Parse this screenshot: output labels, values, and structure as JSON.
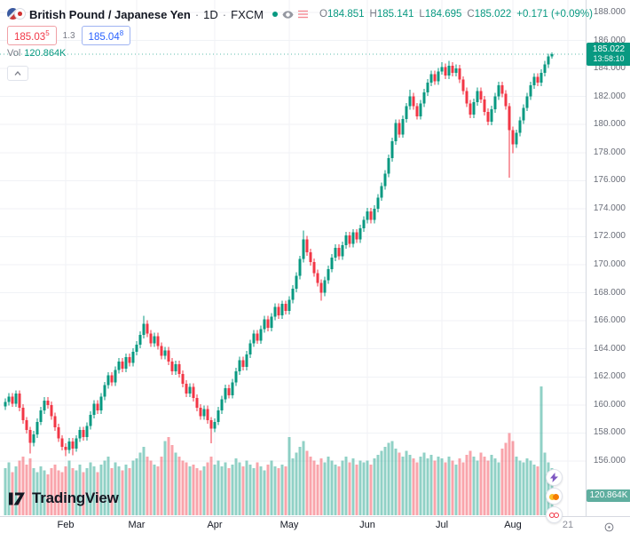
{
  "header": {
    "symbol_title": "British Pound / Japanese Yen",
    "separator": "·",
    "interval": "1D",
    "exchange": "FXCM",
    "ohlc": {
      "o_label": "O",
      "o_value": "184.851",
      "h_label": "H",
      "h_value": "185.141",
      "l_label": "L",
      "l_value": "184.695",
      "c_label": "C",
      "c_value": "185.022",
      "change": "+0.171 (+0.09%)"
    },
    "trade_panel": {
      "sell_main": "185.03",
      "sell_sup": "5",
      "spread": "1.3",
      "buy_main": "185.04",
      "buy_sup": "8"
    },
    "volume_row": {
      "label": "Vol",
      "value": "120.864K"
    }
  },
  "price_scale": {
    "last_price_badge": {
      "price": "185.022",
      "countdown": "13:58:10"
    },
    "volume_badge": "120.864K"
  },
  "watermark_logo": {
    "text": "TradingView"
  },
  "chart_data": {
    "type": "candlestick",
    "title": "British Pound / Japanese Yen, 1D, FXCM",
    "legend_position": "top-left",
    "grid": true,
    "price_axis": {
      "min": 156,
      "max": 188,
      "step": 2,
      "ticks": [
        {
          "text": "188.000",
          "value": 188
        },
        {
          "text": "186.000",
          "value": 186
        },
        {
          "text": "184.000",
          "value": 184
        },
        {
          "text": "182.000",
          "value": 182
        },
        {
          "text": "180.000",
          "value": 180
        },
        {
          "text": "178.000",
          "value": 178
        },
        {
          "text": "176.000",
          "value": 176
        },
        {
          "text": "174.000",
          "value": 174
        },
        {
          "text": "172.000",
          "value": 172
        },
        {
          "text": "170.000",
          "value": 170
        },
        {
          "text": "168.000",
          "value": 168
        },
        {
          "text": "166.000",
          "value": 166
        },
        {
          "text": "164.000",
          "value": 164
        },
        {
          "text": "162.000",
          "value": 162
        },
        {
          "text": "160.000",
          "value": 160
        },
        {
          "text": "158.000",
          "value": 158
        },
        {
          "text": "156.000",
          "value": 156
        }
      ]
    },
    "time_axis": [
      {
        "label": "Feb",
        "candle_index": 17
      },
      {
        "label": "Mar",
        "candle_index": 37
      },
      {
        "label": "Apr",
        "candle_index": 59
      },
      {
        "label": "May",
        "candle_index": 80
      },
      {
        "label": "Jun",
        "candle_index": 102
      },
      {
        "label": "Jul",
        "candle_index": 123
      },
      {
        "label": "Aug",
        "candle_index": 143
      },
      {
        "label": "21",
        "candle_index": 158.5,
        "muted": true
      }
    ],
    "colors": {
      "up": "#089981",
      "down": "#f23645",
      "vol_up": "rgba(8,153,129,0.45)",
      "vol_down": "rgba(242,54,69,0.45)",
      "grid": "#f0f2f6",
      "last_line": "#089981"
    },
    "candle_format": [
      "open",
      "high",
      "low",
      "close",
      "volume_k"
    ],
    "candles": [
      [
        159.9,
        160.45,
        159.65,
        160.2,
        120
      ],
      [
        160.2,
        160.85,
        159.95,
        160.6,
        135
      ],
      [
        160.6,
        160.85,
        159.85,
        160.1,
        110
      ],
      [
        160.1,
        161.05,
        159.85,
        160.8,
        125
      ],
      [
        160.8,
        161.05,
        159.55,
        159.8,
        140
      ],
      [
        159.8,
        160.05,
        158.65,
        158.9,
        150
      ],
      [
        158.9,
        159.15,
        157.95,
        158.2,
        130
      ],
      [
        158.2,
        158.45,
        156.55,
        157.3,
        145
      ],
      [
        157.3,
        158.15,
        157.05,
        157.9,
        120
      ],
      [
        157.9,
        159.05,
        157.65,
        158.8,
        110
      ],
      [
        158.8,
        159.85,
        158.55,
        159.6,
        125
      ],
      [
        159.6,
        160.55,
        159.35,
        160.3,
        115
      ],
      [
        160.3,
        160.55,
        159.75,
        160.0,
        105
      ],
      [
        160.0,
        160.25,
        158.95,
        159.2,
        120
      ],
      [
        159.2,
        159.45,
        158.15,
        158.4,
        130
      ],
      [
        158.4,
        158.65,
        157.35,
        157.6,
        115
      ],
      [
        157.6,
        157.85,
        156.75,
        157.0,
        110
      ],
      [
        157.0,
        157.25,
        156.35,
        156.8,
        125
      ],
      [
        156.8,
        157.65,
        156.55,
        157.4,
        140
      ],
      [
        157.4,
        157.65,
        156.4,
        156.9,
        120
      ],
      [
        156.9,
        157.85,
        156.65,
        157.6,
        115
      ],
      [
        157.6,
        158.45,
        157.35,
        158.2,
        130
      ],
      [
        158.2,
        158.45,
        157.45,
        157.7,
        110
      ],
      [
        157.7,
        158.75,
        157.45,
        158.5,
        120
      ],
      [
        158.5,
        159.55,
        158.25,
        159.3,
        135
      ],
      [
        159.3,
        160.35,
        159.05,
        160.1,
        125
      ],
      [
        160.1,
        160.35,
        159.35,
        159.6,
        110
      ],
      [
        159.6,
        160.85,
        159.35,
        160.6,
        130
      ],
      [
        160.6,
        161.65,
        160.35,
        161.4,
        140
      ],
      [
        161.4,
        162.35,
        161.15,
        162.1,
        150
      ],
      [
        162.1,
        162.35,
        161.35,
        161.6,
        120
      ],
      [
        161.6,
        162.75,
        161.35,
        162.5,
        135
      ],
      [
        162.5,
        163.35,
        162.25,
        163.1,
        125
      ],
      [
        163.1,
        163.35,
        162.35,
        162.6,
        115
      ],
      [
        162.6,
        163.65,
        162.35,
        163.4,
        130
      ],
      [
        163.4,
        163.65,
        162.75,
        163.0,
        120
      ],
      [
        163.0,
        164.05,
        162.75,
        163.8,
        140
      ],
      [
        163.8,
        164.55,
        163.55,
        164.3,
        145
      ],
      [
        164.3,
        165.25,
        164.05,
        165.0,
        160
      ],
      [
        165.0,
        166.35,
        164.75,
        165.8,
        175
      ],
      [
        165.8,
        166.05,
        164.85,
        165.1,
        150
      ],
      [
        165.1,
        165.35,
        164.15,
        164.4,
        140
      ],
      [
        164.4,
        165.15,
        164.15,
        164.9,
        130
      ],
      [
        164.9,
        165.15,
        163.95,
        164.2,
        125
      ],
      [
        164.2,
        164.45,
        163.25,
        163.5,
        150
      ],
      [
        163.5,
        164.15,
        163.25,
        163.9,
        190
      ],
      [
        163.9,
        164.15,
        162.85,
        163.1,
        200
      ],
      [
        163.1,
        163.35,
        162.15,
        162.4,
        180
      ],
      [
        162.4,
        163.15,
        162.15,
        162.9,
        160
      ],
      [
        162.9,
        163.15,
        161.95,
        162.2,
        150
      ],
      [
        162.2,
        162.45,
        161.25,
        161.5,
        140
      ],
      [
        161.5,
        161.75,
        160.55,
        160.8,
        135
      ],
      [
        160.8,
        161.55,
        160.55,
        161.3,
        125
      ],
      [
        161.3,
        161.55,
        160.25,
        160.5,
        130
      ],
      [
        160.5,
        160.75,
        159.55,
        159.8,
        120
      ],
      [
        159.8,
        160.05,
        158.95,
        159.2,
        115
      ],
      [
        159.2,
        159.95,
        158.95,
        159.7,
        125
      ],
      [
        159.7,
        159.95,
        158.65,
        158.9,
        135
      ],
      [
        158.9,
        159.15,
        157.25,
        158.3,
        150
      ],
      [
        158.3,
        159.05,
        158.05,
        158.8,
        130
      ],
      [
        158.8,
        159.85,
        158.55,
        159.6,
        140
      ],
      [
        159.6,
        160.65,
        159.35,
        160.4,
        125
      ],
      [
        160.4,
        161.45,
        160.15,
        161.2,
        135
      ],
      [
        161.2,
        161.45,
        160.45,
        160.7,
        120
      ],
      [
        160.7,
        161.85,
        160.45,
        161.6,
        130
      ],
      [
        161.6,
        162.65,
        161.35,
        162.4,
        145
      ],
      [
        162.4,
        163.45,
        162.15,
        163.2,
        135
      ],
      [
        163.2,
        163.45,
        162.45,
        162.7,
        125
      ],
      [
        162.7,
        163.85,
        162.45,
        163.6,
        140
      ],
      [
        163.6,
        164.65,
        163.35,
        164.4,
        130
      ],
      [
        164.4,
        165.35,
        164.15,
        165.1,
        120
      ],
      [
        165.1,
        165.35,
        164.35,
        164.6,
        135
      ],
      [
        164.6,
        165.65,
        164.35,
        165.4,
        125
      ],
      [
        165.4,
        166.35,
        165.15,
        166.1,
        115
      ],
      [
        166.1,
        166.35,
        165.25,
        165.5,
        130
      ],
      [
        165.5,
        166.55,
        165.25,
        166.3,
        140
      ],
      [
        166.3,
        167.25,
        166.05,
        167.0,
        125
      ],
      [
        167.0,
        167.25,
        166.15,
        166.4,
        120
      ],
      [
        166.4,
        167.45,
        166.15,
        167.2,
        130
      ],
      [
        167.2,
        167.45,
        166.45,
        166.7,
        125
      ],
      [
        166.7,
        167.75,
        166.45,
        167.5,
        200
      ],
      [
        167.5,
        168.55,
        167.25,
        168.3,
        145
      ],
      [
        168.3,
        169.45,
        168.05,
        169.2,
        160
      ],
      [
        169.2,
        170.65,
        168.95,
        170.4,
        175
      ],
      [
        170.4,
        172.45,
        170.15,
        171.8,
        190
      ],
      [
        171.8,
        172.05,
        170.65,
        170.9,
        165
      ],
      [
        170.9,
        171.15,
        169.95,
        170.2,
        150
      ],
      [
        170.2,
        170.45,
        169.15,
        169.4,
        140
      ],
      [
        169.4,
        169.65,
        168.45,
        168.7,
        130
      ],
      [
        168.7,
        168.95,
        167.45,
        168.0,
        145
      ],
      [
        168.0,
        169.15,
        167.75,
        168.9,
        135
      ],
      [
        168.9,
        169.95,
        168.65,
        169.7,
        150
      ],
      [
        169.7,
        170.75,
        169.45,
        170.5,
        140
      ],
      [
        170.5,
        171.45,
        170.25,
        171.2,
        130
      ],
      [
        171.2,
        171.45,
        170.35,
        170.6,
        125
      ],
      [
        170.6,
        171.65,
        170.35,
        171.4,
        140
      ],
      [
        171.4,
        172.35,
        171.15,
        172.1,
        150
      ],
      [
        172.1,
        172.35,
        171.25,
        171.5,
        135
      ],
      [
        171.5,
        172.55,
        171.25,
        172.3,
        145
      ],
      [
        172.3,
        172.55,
        171.55,
        171.8,
        130
      ],
      [
        171.8,
        172.85,
        171.55,
        172.6,
        140
      ],
      [
        172.6,
        173.45,
        172.35,
        173.2,
        135
      ],
      [
        173.2,
        174.05,
        172.95,
        173.8,
        140
      ],
      [
        173.8,
        174.05,
        172.95,
        173.2,
        130
      ],
      [
        173.2,
        174.25,
        172.95,
        174.0,
        145
      ],
      [
        174.0,
        175.05,
        173.75,
        174.8,
        155
      ],
      [
        174.8,
        175.85,
        174.55,
        175.6,
        165
      ],
      [
        175.6,
        176.75,
        175.35,
        176.5,
        175
      ],
      [
        176.5,
        177.85,
        176.25,
        177.6,
        185
      ],
      [
        177.6,
        179.05,
        177.35,
        178.8,
        190
      ],
      [
        178.8,
        180.35,
        178.55,
        180.1,
        170
      ],
      [
        180.1,
        180.35,
        179.05,
        179.3,
        160
      ],
      [
        179.3,
        180.65,
        179.05,
        180.4,
        150
      ],
      [
        180.4,
        181.55,
        180.15,
        181.3,
        165
      ],
      [
        181.3,
        182.5,
        181.05,
        182.0,
        155
      ],
      [
        182.0,
        182.25,
        181.05,
        181.3,
        145
      ],
      [
        181.3,
        181.55,
        180.35,
        180.6,
        135
      ],
      [
        180.6,
        181.75,
        180.35,
        181.5,
        150
      ],
      [
        181.5,
        182.55,
        181.25,
        182.3,
        160
      ],
      [
        182.3,
        183.25,
        182.05,
        183.0,
        145
      ],
      [
        183.0,
        183.85,
        182.75,
        183.6,
        155
      ],
      [
        183.6,
        183.85,
        182.85,
        183.1,
        140
      ],
      [
        183.1,
        184.05,
        182.85,
        183.8,
        150
      ],
      [
        183.8,
        184.45,
        183.55,
        184.1,
        145
      ],
      [
        184.1,
        184.35,
        183.25,
        183.5,
        135
      ],
      [
        183.5,
        184.55,
        183.25,
        184.2,
        150
      ],
      [
        184.2,
        184.45,
        183.45,
        183.7,
        140
      ],
      [
        183.7,
        184.3,
        183.45,
        184.0,
        130
      ],
      [
        184.0,
        184.25,
        182.95,
        183.2,
        145
      ],
      [
        183.2,
        183.45,
        182.15,
        182.4,
        135
      ],
      [
        182.4,
        182.65,
        181.25,
        181.5,
        155
      ],
      [
        181.5,
        181.75,
        180.45,
        180.7,
        165
      ],
      [
        180.7,
        181.85,
        180.45,
        181.6,
        150
      ],
      [
        181.6,
        182.65,
        181.35,
        182.4,
        140
      ],
      [
        182.4,
        182.65,
        181.55,
        181.8,
        160
      ],
      [
        181.8,
        182.05,
        180.65,
        180.9,
        150
      ],
      [
        180.9,
        181.15,
        179.95,
        180.2,
        140
      ],
      [
        180.2,
        181.35,
        179.95,
        181.1,
        155
      ],
      [
        181.1,
        182.25,
        180.85,
        182.0,
        145
      ],
      [
        182.0,
        183.05,
        181.75,
        182.8,
        135
      ],
      [
        182.8,
        183.05,
        181.95,
        182.2,
        170
      ],
      [
        182.2,
        182.45,
        181.05,
        181.3,
        185
      ],
      [
        181.3,
        181.55,
        176.2,
        179.6,
        210
      ],
      [
        179.6,
        179.85,
        177.95,
        178.6,
        190
      ],
      [
        178.6,
        179.65,
        178.35,
        179.4,
        150
      ],
      [
        179.4,
        180.55,
        179.15,
        180.3,
        140
      ],
      [
        180.3,
        181.45,
        180.05,
        181.2,
        135
      ],
      [
        181.2,
        182.25,
        180.95,
        182.0,
        145
      ],
      [
        182.0,
        183.05,
        181.75,
        182.8,
        140
      ],
      [
        182.8,
        183.65,
        182.55,
        183.4,
        130
      ],
      [
        183.4,
        183.65,
        182.75,
        183.0,
        125
      ],
      [
        183.0,
        183.95,
        182.75,
        183.7,
        330
      ],
      [
        183.7,
        184.55,
        183.45,
        184.3,
        160
      ],
      [
        184.3,
        185.05,
        184.05,
        184.85,
        135
      ],
      [
        184.851,
        185.141,
        184.695,
        185.022,
        120.864
      ]
    ]
  }
}
